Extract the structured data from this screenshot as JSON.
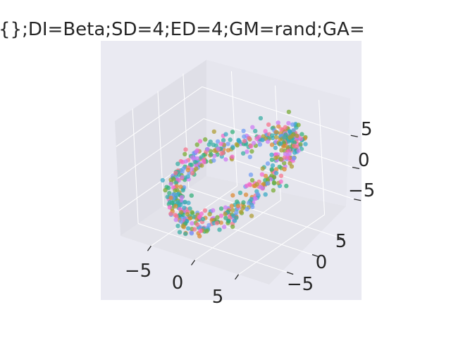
{
  "chart_data": {
    "type": "scatter",
    "projection": "3d",
    "title": "{};DI=Beta;SD=4;ED=4;GM=rand;GA=",
    "xlabel": "",
    "ylabel": "",
    "zlabel": "",
    "x_ticks": [
      "−5",
      "0",
      "5"
    ],
    "y_ticks": [
      "−5",
      "0",
      "5"
    ],
    "z_ticks": [
      "−5",
      "0",
      "5"
    ],
    "xlim": [
      -8.5,
      8.5
    ],
    "ylim": [
      -8.5,
      8.5
    ],
    "zlim": [
      -9,
      9
    ],
    "grid": true,
    "legend": "none",
    "structure": "closed 3D ring / torus-like point cloud, ~600 points, colored by a qualitative (husl) palette",
    "palette": [
      "#f77189",
      "#dc8932",
      "#ae9d31",
      "#77ab31",
      "#33b07a",
      "#36ada4",
      "#38a9c5",
      "#6e9bf4",
      "#cc7af4",
      "#f565cc"
    ],
    "colors": {
      "axes_background": "#eaeaf2",
      "pane_floor": "#e3e3ea",
      "pane_wall_left": "#dfdfe7",
      "pane_wall_back": "#e6e6ee",
      "grid": "#ffffff",
      "text": "#262626"
    }
  }
}
